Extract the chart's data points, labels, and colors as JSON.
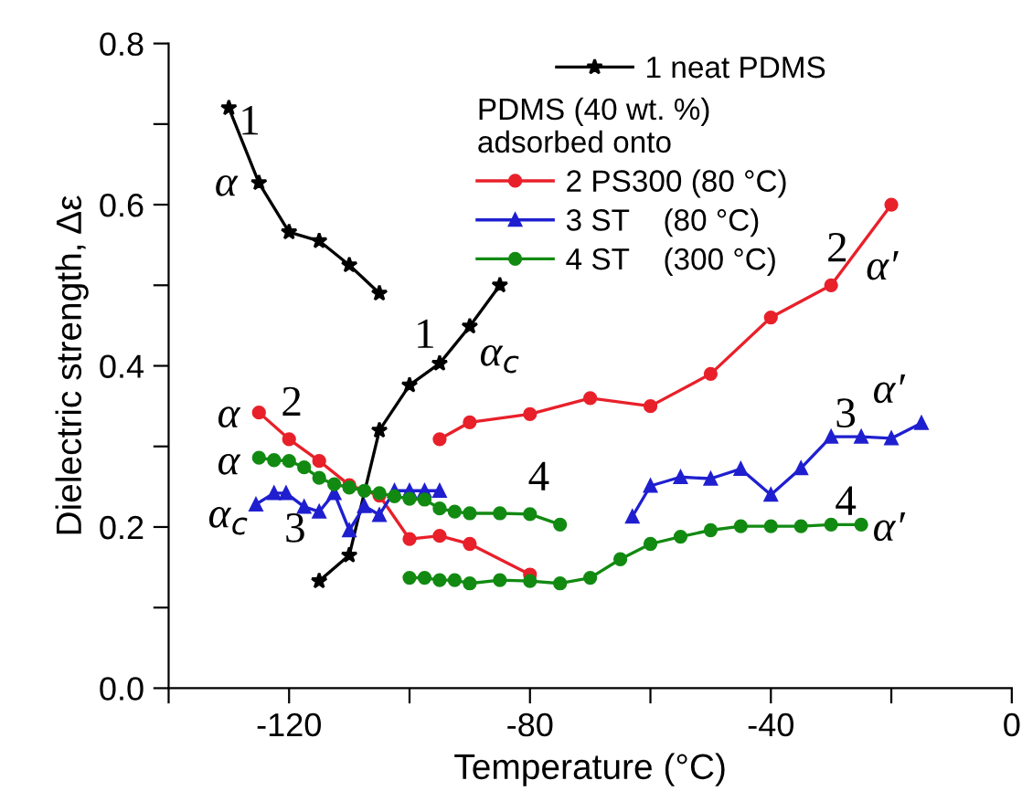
{
  "chart_data": {
    "type": "line",
    "xlabel": "Temperature (°C)",
    "ylabel": "Dielectric strength, Δε",
    "xlim": [
      -140,
      0
    ],
    "ylim": [
      0,
      0.8
    ],
    "xticks": [
      {
        "value": -140,
        "label": null
      },
      -120,
      {
        "value": -100,
        "label": null
      },
      -80,
      {
        "value": -60,
        "label": null
      },
      -40,
      {
        "value": -20,
        "label": null
      },
      0
    ],
    "yticks": [
      {
        "value": 0,
        "label": "0.0"
      },
      {
        "value": 0.1,
        "label": null
      },
      0.2,
      {
        "value": 0.3,
        "label": null
      },
      0.4,
      {
        "value": 0.5,
        "label": null
      },
      0.6,
      {
        "value": 0.7,
        "label": null
      },
      0.8
    ],
    "grid": false,
    "legend": "top",
    "legend_title": "PDMS (40 wt. %)\nadsorbed onto",
    "series": [
      {
        "name": "1 neat PDMS",
        "color": "#000000",
        "marker": "star",
        "x": [
          -130,
          -125,
          -120,
          -115,
          -110,
          -105
        ],
        "values": [
          0.72,
          0.627,
          0.566,
          0.555,
          0.525,
          0.49
        ]
      },
      {
        "color": "#000000",
        "marker": "star",
        "x": [
          -115,
          -110,
          -105,
          -100,
          -95,
          -90,
          -85
        ],
        "values": [
          0.133,
          0.165,
          0.32,
          0.376,
          0.403,
          0.449,
          0.5
        ]
      },
      {
        "name": "2 PS300 (80 °C)",
        "color": "#e8202a",
        "marker": "circle",
        "x": [
          -125,
          -120,
          -115,
          -110,
          -105,
          -100,
          -95,
          -90,
          -80
        ],
        "values": [
          0.342,
          0.309,
          0.282,
          0.252,
          0.239,
          0.185,
          0.189,
          0.179,
          0.141
        ]
      },
      {
        "color": "#e8202a",
        "marker": "circle",
        "x": [
          -95,
          -90,
          -80,
          -70,
          -60,
          -50,
          -40,
          -30,
          -20
        ],
        "values": [
          0.309,
          0.33,
          0.34,
          0.36,
          0.35,
          0.39,
          0.46,
          0.5,
          0.6
        ]
      },
      {
        "name": "3 ST    (80 °C)",
        "color": "#1f1fd0",
        "marker": "triangle",
        "x": [
          -125.5,
          -122.5,
          -120.5,
          -117.5,
          -115,
          -112.5,
          -110,
          -107.5,
          -105,
          -102.5,
          -100,
          -97.5,
          -95
        ],
        "values": [
          0.228,
          0.242,
          0.242,
          0.225,
          0.219,
          0.242,
          0.196,
          0.226,
          0.215,
          0.245,
          0.245,
          0.245,
          0.245
        ]
      },
      {
        "color": "#1f1fd0",
        "marker": "triangle",
        "x": [
          -63,
          -60,
          -55,
          -50,
          -45,
          -40,
          -35,
          -30,
          -25,
          -20,
          -15
        ],
        "values": [
          0.213,
          0.251,
          0.262,
          0.26,
          0.272,
          0.24,
          0.273,
          0.312,
          0.312,
          0.31,
          0.329
        ]
      },
      {
        "name": "4 ST    (300 °C)",
        "color": "#128a12",
        "marker": "circle",
        "x": [
          -125,
          -122.5,
          -120,
          -117.5,
          -115,
          -112.5,
          -110,
          -107.5,
          -105,
          -102.5,
          -100,
          -97.5,
          -95,
          -92.5,
          -90,
          -85,
          -80,
          -75
        ],
        "values": [
          0.286,
          0.283,
          0.282,
          0.274,
          0.261,
          0.253,
          0.249,
          0.245,
          0.242,
          0.238,
          0.235,
          0.234,
          0.223,
          0.219,
          0.217,
          0.217,
          0.216,
          0.203
        ]
      },
      {
        "color": "#128a12",
        "marker": "circle",
        "x": [
          -100,
          -97.5,
          -95,
          -92.5,
          -90,
          -85,
          -80,
          -75,
          -70,
          -65,
          -60,
          -55,
          -50,
          -45,
          -40,
          -35,
          -30,
          -25
        ],
        "values": [
          0.137,
          0.137,
          0.134,
          0.134,
          0.13,
          0.134,
          0.133,
          0.13,
          0.137,
          0.16,
          0.179,
          0.188,
          0.196,
          0.201,
          0.201,
          0.201,
          0.203,
          0.203
        ]
      }
    ],
    "annotations": [
      "1",
      "α",
      "1",
      "α$_{c}$",
      "α",
      "2",
      "α",
      "α$_{c}$",
      "3",
      "4",
      "2",
      "α′",
      "3",
      "α′",
      "4",
      "α′"
    ]
  }
}
